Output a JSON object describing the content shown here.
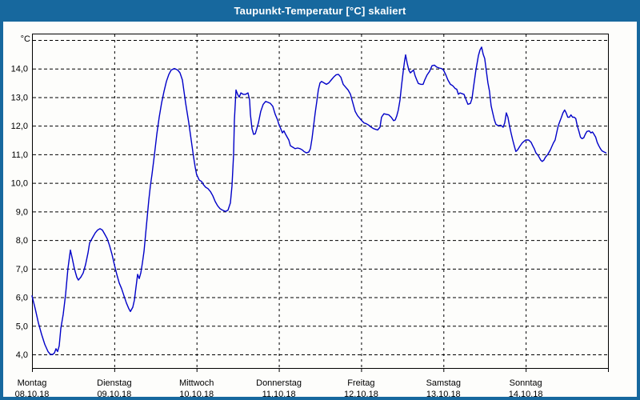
{
  "window": {
    "title": "Taupunkt-Temperatur [°C] skaliert",
    "frame_color": "#17689E",
    "title_text_color": "#FFFFFF"
  },
  "chart_data": {
    "type": "line",
    "title": "Taupunkt-Temperatur [°C] skaliert",
    "unit_label": "°C",
    "ylabel": "Taupunkt-Temperatur [°C]",
    "xlabel": "",
    "grid": "dashed",
    "legend": "none",
    "ylim": [
      3.55,
      15.25
    ],
    "y_gridline_values": [
      4,
      5,
      6,
      7,
      8,
      9,
      10,
      11,
      12,
      13,
      14,
      15
    ],
    "y_ticks": [
      [
        4,
        "4,0"
      ],
      [
        5,
        "5,0"
      ],
      [
        6,
        "6,0"
      ],
      [
        7,
        "7,0"
      ],
      [
        8,
        "8,0"
      ],
      [
        9,
        "9,0"
      ],
      [
        10,
        "10,0"
      ],
      [
        11,
        "11,0"
      ],
      [
        12,
        "12,0"
      ],
      [
        13,
        "13,0"
      ],
      [
        14,
        "14,0"
      ]
    ],
    "x_unit": "days since Montag 08.10.18 00:00",
    "xlim": [
      0,
      7
    ],
    "days": [
      {
        "label": "Montag",
        "date": "08.10.18"
      },
      {
        "label": "Dienstag",
        "date": "09.10.18"
      },
      {
        "label": "Mittwoch",
        "date": "10.10.18"
      },
      {
        "label": "Donnerstag",
        "date": "11.10.18"
      },
      {
        "label": "Freitag",
        "date": "12.10.18"
      },
      {
        "label": "Samstag",
        "date": "13.10.18"
      },
      {
        "label": "Sonntag",
        "date": "14.10.18"
      }
    ],
    "series": [
      {
        "name": "Taupunkt-Temperatur",
        "color": "#0000C8",
        "points": [
          [
            0,
            6.05
          ],
          [
            0.039,
            5.6
          ],
          [
            0.078,
            5.1
          ],
          [
            0.117,
            4.7
          ],
          [
            0.156,
            4.35
          ],
          [
            0.194,
            4.1
          ],
          [
            0.224,
            4.0
          ],
          [
            0.253,
            4.0
          ],
          [
            0.272,
            4.05
          ],
          [
            0.292,
            4.2
          ],
          [
            0.311,
            4.1
          ],
          [
            0.331,
            4.3
          ],
          [
            0.35,
            4.9
          ],
          [
            0.379,
            5.4
          ],
          [
            0.408,
            6.1
          ],
          [
            0.437,
            7.0
          ],
          [
            0.467,
            7.65
          ],
          [
            0.486,
            7.4
          ],
          [
            0.515,
            7.0
          ],
          [
            0.544,
            6.7
          ],
          [
            0.564,
            6.6
          ],
          [
            0.593,
            6.7
          ],
          [
            0.622,
            6.85
          ],
          [
            0.651,
            7.15
          ],
          [
            0.681,
            7.55
          ],
          [
            0.7,
            7.9
          ],
          [
            0.739,
            8.1
          ],
          [
            0.768,
            8.25
          ],
          [
            0.797,
            8.35
          ],
          [
            0.826,
            8.4
          ],
          [
            0.856,
            8.35
          ],
          [
            0.885,
            8.2
          ],
          [
            0.914,
            8.05
          ],
          [
            0.943,
            7.8
          ],
          [
            0.972,
            7.5
          ],
          [
            1.0,
            7.15
          ],
          [
            1.031,
            6.8
          ],
          [
            1.06,
            6.5
          ],
          [
            1.089,
            6.3
          ],
          [
            1.118,
            6.05
          ],
          [
            1.147,
            5.8
          ],
          [
            1.176,
            5.6
          ],
          [
            1.196,
            5.5
          ],
          [
            1.225,
            5.65
          ],
          [
            1.244,
            5.9
          ],
          [
            1.264,
            6.35
          ],
          [
            1.283,
            6.8
          ],
          [
            1.303,
            6.65
          ],
          [
            1.322,
            6.85
          ],
          [
            1.342,
            7.2
          ],
          [
            1.361,
            7.6
          ],
          [
            1.381,
            8.2
          ],
          [
            1.4,
            8.8
          ],
          [
            1.419,
            9.4
          ],
          [
            1.439,
            9.9
          ],
          [
            1.458,
            10.3
          ],
          [
            1.488,
            11.0
          ],
          [
            1.517,
            11.7
          ],
          [
            1.546,
            12.3
          ],
          [
            1.575,
            12.8
          ],
          [
            1.604,
            13.2
          ],
          [
            1.633,
            13.55
          ],
          [
            1.663,
            13.8
          ],
          [
            1.692,
            13.95
          ],
          [
            1.731,
            14.0
          ],
          [
            1.77,
            13.95
          ],
          [
            1.799,
            13.85
          ],
          [
            1.828,
            13.6
          ],
          [
            1.847,
            13.2
          ],
          [
            1.867,
            12.8
          ],
          [
            1.886,
            12.45
          ],
          [
            1.906,
            12.1
          ],
          [
            1.925,
            11.7
          ],
          [
            1.944,
            11.3
          ],
          [
            1.964,
            10.9
          ],
          [
            1.983,
            10.55
          ],
          [
            2.0,
            10.3
          ],
          [
            2.032,
            10.1
          ],
          [
            2.061,
            10.05
          ],
          [
            2.081,
            9.95
          ],
          [
            2.11,
            9.85
          ],
          [
            2.139,
            9.8
          ],
          [
            2.168,
            9.7
          ],
          [
            2.197,
            9.55
          ],
          [
            2.226,
            9.35
          ],
          [
            2.256,
            9.2
          ],
          [
            2.285,
            9.1
          ],
          [
            2.314,
            9.05
          ],
          [
            2.353,
            9.0
          ],
          [
            2.382,
            9.05
          ],
          [
            2.411,
            9.3
          ],
          [
            2.431,
            9.9
          ],
          [
            2.45,
            11.0
          ],
          [
            2.46,
            12.2
          ],
          [
            2.479,
            13.25
          ],
          [
            2.499,
            13.1
          ],
          [
            2.518,
            13.0
          ],
          [
            2.538,
            13.15
          ],
          [
            2.567,
            13.1
          ],
          [
            2.596,
            13.1
          ],
          [
            2.625,
            13.15
          ],
          [
            2.644,
            12.9
          ],
          [
            2.654,
            12.4
          ],
          [
            2.674,
            11.9
          ],
          [
            2.693,
            11.7
          ],
          [
            2.713,
            11.72
          ],
          [
            2.732,
            11.9
          ],
          [
            2.751,
            12.1
          ],
          [
            2.78,
            12.5
          ],
          [
            2.81,
            12.75
          ],
          [
            2.839,
            12.85
          ],
          [
            2.868,
            12.82
          ],
          [
            2.897,
            12.78
          ],
          [
            2.926,
            12.68
          ],
          [
            2.956,
            12.4
          ],
          [
            2.985,
            12.2
          ],
          [
            3.0,
            12.05
          ],
          [
            3.023,
            11.9
          ],
          [
            3.043,
            11.75
          ],
          [
            3.062,
            11.82
          ],
          [
            3.082,
            11.7
          ],
          [
            3.101,
            11.6
          ],
          [
            3.121,
            11.5
          ],
          [
            3.14,
            11.3
          ],
          [
            3.169,
            11.25
          ],
          [
            3.198,
            11.2
          ],
          [
            3.228,
            11.22
          ],
          [
            3.257,
            11.2
          ],
          [
            3.286,
            11.15
          ],
          [
            3.305,
            11.1
          ],
          [
            3.335,
            11.05
          ],
          [
            3.364,
            11.08
          ],
          [
            3.383,
            11.2
          ],
          [
            3.403,
            11.55
          ],
          [
            3.422,
            12.0
          ],
          [
            3.442,
            12.45
          ],
          [
            3.461,
            12.85
          ],
          [
            3.48,
            13.25
          ],
          [
            3.5,
            13.5
          ],
          [
            3.519,
            13.55
          ],
          [
            3.549,
            13.5
          ],
          [
            3.578,
            13.45
          ],
          [
            3.607,
            13.5
          ],
          [
            3.636,
            13.6
          ],
          [
            3.665,
            13.7
          ],
          [
            3.694,
            13.78
          ],
          [
            3.724,
            13.8
          ],
          [
            3.753,
            13.7
          ],
          [
            3.782,
            13.45
          ],
          [
            3.811,
            13.35
          ],
          [
            3.841,
            13.25
          ],
          [
            3.87,
            13.1
          ],
          [
            3.899,
            12.8
          ],
          [
            3.928,
            12.5
          ],
          [
            3.957,
            12.35
          ],
          [
            3.986,
            12.25
          ],
          [
            4.0,
            12.2
          ],
          [
            4.035,
            12.1
          ],
          [
            4.064,
            12.07
          ],
          [
            4.093,
            12.02
          ],
          [
            4.122,
            11.95
          ],
          [
            4.151,
            11.9
          ],
          [
            4.18,
            11.87
          ],
          [
            4.2,
            11.85
          ],
          [
            4.229,
            11.95
          ],
          [
            4.248,
            12.3
          ],
          [
            4.277,
            12.42
          ],
          [
            4.307,
            12.4
          ],
          [
            4.336,
            12.38
          ],
          [
            4.365,
            12.3
          ],
          [
            4.394,
            12.18
          ],
          [
            4.414,
            12.2
          ],
          [
            4.433,
            12.35
          ],
          [
            4.452,
            12.55
          ],
          [
            4.472,
            12.9
          ],
          [
            4.491,
            13.4
          ],
          [
            4.511,
            13.9
          ],
          [
            4.53,
            14.3
          ],
          [
            4.54,
            14.48
          ],
          [
            4.559,
            14.2
          ],
          [
            4.579,
            13.95
          ],
          [
            4.598,
            13.85
          ],
          [
            4.617,
            13.9
          ],
          [
            4.637,
            13.95
          ],
          [
            4.656,
            13.75
          ],
          [
            4.676,
            13.6
          ],
          [
            4.695,
            13.48
          ],
          [
            4.724,
            13.45
          ],
          [
            4.753,
            13.45
          ],
          [
            4.773,
            13.6
          ],
          [
            4.802,
            13.78
          ],
          [
            4.831,
            13.9
          ],
          [
            4.861,
            14.1
          ],
          [
            4.89,
            14.12
          ],
          [
            4.919,
            14.05
          ],
          [
            4.948,
            14.02
          ],
          [
            4.977,
            14.0
          ],
          [
            5.0,
            13.95
          ],
          [
            5.026,
            13.8
          ],
          [
            5.055,
            13.6
          ],
          [
            5.085,
            13.45
          ],
          [
            5.114,
            13.4
          ],
          [
            5.143,
            13.3
          ],
          [
            5.162,
            13.28
          ],
          [
            5.182,
            13.1
          ],
          [
            5.201,
            13.15
          ],
          [
            5.23,
            13.12
          ],
          [
            5.25,
            13.1
          ],
          [
            5.279,
            12.88
          ],
          [
            5.298,
            12.75
          ],
          [
            5.328,
            12.78
          ],
          [
            5.347,
            12.95
          ],
          [
            5.366,
            13.35
          ],
          [
            5.395,
            13.95
          ],
          [
            5.425,
            14.45
          ],
          [
            5.444,
            14.65
          ],
          [
            5.464,
            14.75
          ],
          [
            5.483,
            14.5
          ],
          [
            5.502,
            14.35
          ],
          [
            5.522,
            13.9
          ],
          [
            5.541,
            13.5
          ],
          [
            5.56,
            13.2
          ],
          [
            5.58,
            12.7
          ],
          [
            5.599,
            12.45
          ],
          [
            5.619,
            12.2
          ],
          [
            5.638,
            12.05
          ],
          [
            5.667,
            12.0
          ],
          [
            5.696,
            12.02
          ],
          [
            5.725,
            11.95
          ],
          [
            5.745,
            12.1
          ],
          [
            5.764,
            12.45
          ],
          [
            5.784,
            12.3
          ],
          [
            5.803,
            12.0
          ],
          [
            5.822,
            11.75
          ],
          [
            5.842,
            11.5
          ],
          [
            5.861,
            11.3
          ],
          [
            5.88,
            11.1
          ],
          [
            5.9,
            11.15
          ],
          [
            5.929,
            11.28
          ],
          [
            5.958,
            11.4
          ],
          [
            5.987,
            11.47
          ],
          [
            6.0,
            11.5
          ],
          [
            6.036,
            11.5
          ],
          [
            6.066,
            11.42
          ],
          [
            6.085,
            11.3
          ],
          [
            6.104,
            11.2
          ],
          [
            6.124,
            11.05
          ],
          [
            6.153,
            10.95
          ],
          [
            6.182,
            10.8
          ],
          [
            6.201,
            10.75
          ],
          [
            6.221,
            10.8
          ],
          [
            6.24,
            10.9
          ],
          [
            6.269,
            11.0
          ],
          [
            6.299,
            11.15
          ],
          [
            6.318,
            11.28
          ],
          [
            6.337,
            11.4
          ],
          [
            6.357,
            11.5
          ],
          [
            6.376,
            11.75
          ],
          [
            6.395,
            12.0
          ],
          [
            6.415,
            12.15
          ],
          [
            6.434,
            12.3
          ],
          [
            6.453,
            12.45
          ],
          [
            6.473,
            12.55
          ],
          [
            6.492,
            12.45
          ],
          [
            6.511,
            12.3
          ],
          [
            6.531,
            12.3
          ],
          [
            6.55,
            12.38
          ],
          [
            6.569,
            12.3
          ],
          [
            6.589,
            12.3
          ],
          [
            6.608,
            12.25
          ],
          [
            6.627,
            12.0
          ],
          [
            6.647,
            11.8
          ],
          [
            6.666,
            11.6
          ],
          [
            6.685,
            11.55
          ],
          [
            6.705,
            11.58
          ],
          [
            6.724,
            11.7
          ],
          [
            6.743,
            11.8
          ],
          [
            6.772,
            11.82
          ],
          [
            6.792,
            11.75
          ],
          [
            6.811,
            11.78
          ],
          [
            6.83,
            11.7
          ],
          [
            6.85,
            11.6
          ],
          [
            6.869,
            11.42
          ],
          [
            6.888,
            11.3
          ],
          [
            6.908,
            11.2
          ],
          [
            6.927,
            11.12
          ],
          [
            6.956,
            11.08
          ],
          [
            6.976,
            11.05
          ]
        ]
      }
    ]
  }
}
